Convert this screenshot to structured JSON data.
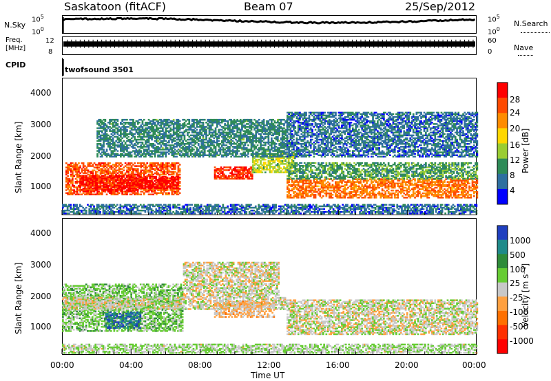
{
  "header": {
    "title": "Saskatoon (fitACF)",
    "beam": "Beam 07",
    "date": "25/Sep/2012"
  },
  "nsky_panel": {
    "left_label": "N.Sky",
    "left_ticks": [
      "10^5",
      "10^0"
    ],
    "right_ticks": [
      "10^5",
      "10^0"
    ],
    "right_label": "N.Search"
  },
  "freq_panel": {
    "left_label_1": "Freq.",
    "left_label_2": "[MHz]",
    "left_ticks": [
      "12",
      "8"
    ],
    "right_ticks": [
      "60",
      "0"
    ],
    "right_label": "Nave"
  },
  "cpid_panel": {
    "left_label": "CPID",
    "mode_text": "twofsound 3501"
  },
  "power_panel": {
    "ylabel": "Slant Range [km]",
    "yticks": [
      "4000",
      "3000",
      "2000",
      "1000"
    ],
    "colorbar_label": "Power [dB]",
    "colorbar_ticks": [
      "28",
      "24",
      "20",
      "16",
      "12",
      "8",
      "4"
    ],
    "colorbar_colors": [
      "#ff0000",
      "#ff4a00",
      "#ff8c00",
      "#ffd700",
      "#9acd32",
      "#2e8b57",
      "#2e6fa0",
      "#0000ff"
    ]
  },
  "velocity_panel": {
    "ylabel": "Slant Range [km]",
    "yticks": [
      "4000",
      "3000",
      "2000",
      "1000"
    ],
    "colorbar_label": "Velocity [m s⁻¹]",
    "colorbar_ticks": [
      "1000",
      "500",
      "100",
      "25",
      "-25",
      "-100",
      "-500",
      "-1000"
    ],
    "colorbar_colors": [
      "#1f3fbf",
      "#1f8a8a",
      "#2e8b3a",
      "#66cc33",
      "#c8c8c8",
      "#ffa040",
      "#ff7000",
      "#ff3000",
      "#ff0000"
    ]
  },
  "xaxis": {
    "label": "Time UT",
    "ticks": [
      "00:00",
      "04:00",
      "08:00",
      "12:00",
      "16:00",
      "20:00",
      "00:00"
    ]
  },
  "chart_data": {
    "type": "heatmap",
    "title": "Saskatoon (fitACF)",
    "xlabel": "Time UT",
    "ylabel": "Slant Range [km]",
    "xlim": [
      0,
      24
    ],
    "ylim": [
      180,
      4500
    ],
    "panels": [
      {
        "name": "Power [dB]",
        "colorbar_range": [
          0,
          30
        ],
        "regions": [
          {
            "t": [
              0.2,
              6.8
            ],
            "r": [
              800,
              1800
            ],
            "value": 24
          },
          {
            "t": [
              1.0,
              4.5
            ],
            "r": [
              900,
              1400
            ],
            "value": 28
          },
          {
            "t": [
              4.5,
              6.7
            ],
            "r": [
              1000,
              1400
            ],
            "value": 30
          },
          {
            "t": [
              8.8,
              11.0
            ],
            "r": [
              1300,
              1700
            ],
            "value": 26
          },
          {
            "t": [
              11.0,
              13.5
            ],
            "r": [
              1500,
              2100
            ],
            "value": 14
          },
          {
            "t": [
              13.0,
              24.0
            ],
            "r": [
              700,
              1300
            ],
            "value": 22
          },
          {
            "t": [
              13.0,
              24.0
            ],
            "r": [
              1300,
              1800
            ],
            "value": 10
          },
          {
            "t": [
              2.0,
              13.0
            ],
            "r": [
              2000,
              3200
            ],
            "value": 8
          },
          {
            "t": [
              13.0,
              24.0
            ],
            "r": [
              2000,
              3400
            ],
            "value": 6
          },
          {
            "t": [
              0.0,
              24.0
            ],
            "r": [
              200,
              500
            ],
            "value": 6
          }
        ]
      },
      {
        "name": "Velocity [m s-1]",
        "colorbar_range": [
          -1000,
          1000
        ],
        "regions": [
          {
            "t": [
              0.0,
              7.0
            ],
            "r": [
              900,
              2400
            ],
            "value": 200
          },
          {
            "t": [
              2.5,
              4.5
            ],
            "r": [
              1000,
              1500
            ],
            "value": 700
          },
          {
            "t": [
              0.0,
              13.0
            ],
            "r": [
              1600,
              2000
            ],
            "value": 0
          },
          {
            "t": [
              7.0,
              12.5
            ],
            "r": [
              2000,
              3100
            ],
            "value": 0
          },
          {
            "t": [
              8.8,
              12.3
            ],
            "r": [
              1350,
              1850
            ],
            "value": -150
          },
          {
            "t": [
              13.0,
              24.0
            ],
            "r": [
              800,
              1900
            ],
            "value": 0
          },
          {
            "t": [
              0.0,
              24.0
            ],
            "r": [
              200,
              500
            ],
            "value": 100
          }
        ]
      }
    ],
    "top_panels": {
      "nsky_range_log": [
        0,
        5
      ],
      "freq_mhz_range": [
        8,
        12
      ],
      "freq_mhz": 10.5,
      "cpid": 3501,
      "nave_range": [
        0,
        60
      ]
    }
  }
}
